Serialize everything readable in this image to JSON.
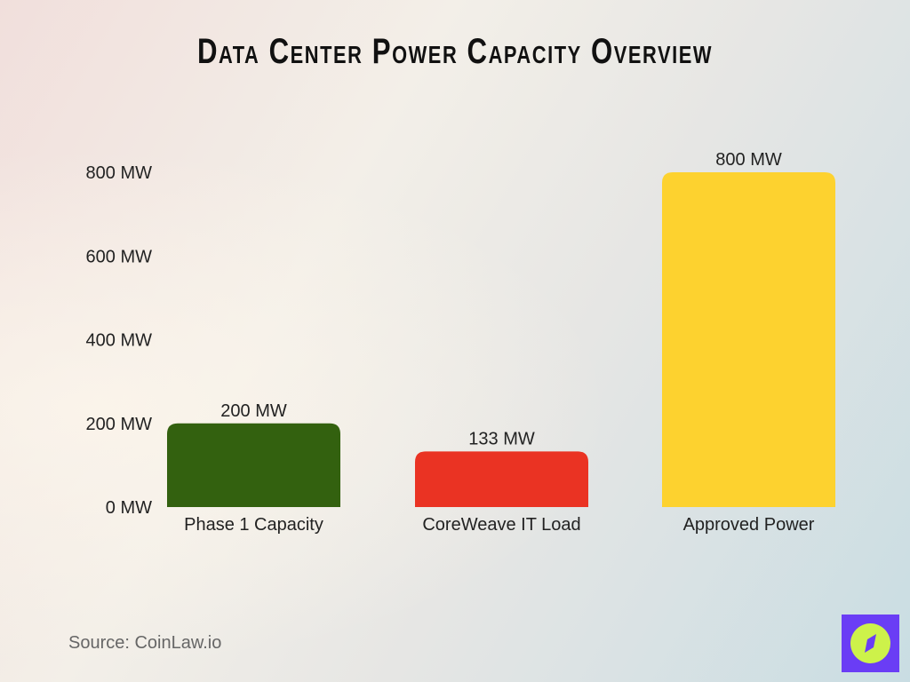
{
  "chart_data": {
    "type": "bar",
    "title": "Data Center Power Capacity Overview",
    "categories": [
      "Phase 1 Capacity",
      "CoreWeave IT Load",
      "Approved Power"
    ],
    "values": [
      200,
      133,
      800
    ],
    "data_labels": [
      "200 MW",
      "133 MW",
      "800 MW"
    ],
    "colors": [
      "#33610f",
      "#ea3323",
      "#fdd22f"
    ],
    "yticks": [
      0,
      200,
      400,
      600,
      800
    ],
    "ytick_labels": [
      "0 MW",
      "200 MW",
      "400 MW",
      "600 MW",
      "800 MW"
    ],
    "ylim": [
      0,
      800
    ],
    "grid": false,
    "xlabel": "",
    "ylabel": ""
  },
  "source": "Source: CoinLaw.io",
  "logo": {
    "icon": "compass-icon",
    "colors": [
      "#6a3df5",
      "#cdf24a"
    ]
  }
}
